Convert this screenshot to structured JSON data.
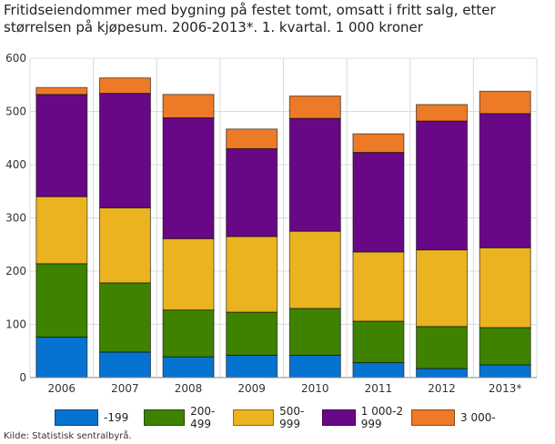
{
  "chart_data": {
    "type": "bar",
    "stacked": true,
    "title": "Fritidseiendommer med bygning på festet tomt, omsatt i fritt salg, etter størrelsen på kjøpesum. 2006-2013*. 1. kvartal. 1 000 kroner",
    "categories": [
      "2006",
      "2007",
      "2008",
      "2009",
      "2010",
      "2011",
      "2012",
      "2013*"
    ],
    "series": [
      {
        "name": "-199",
        "color": "#0773d0",
        "values": [
          76,
          48,
          39,
          42,
          42,
          28,
          17,
          24
        ]
      },
      {
        "name": "200-499",
        "color": "#3e8200",
        "values": [
          138,
          130,
          88,
          81,
          88,
          78,
          79,
          70
        ]
      },
      {
        "name": "500-999",
        "color": "#ebb320",
        "values": [
          126,
          141,
          134,
          142,
          145,
          130,
          144,
          150
        ]
      },
      {
        "name": "1 000-2 999",
        "color": "#680887",
        "values": [
          192,
          215,
          227,
          165,
          212,
          187,
          242,
          252
        ]
      },
      {
        "name": "3 000-",
        "color": "#ec7a27",
        "values": [
          13,
          29,
          44,
          37,
          42,
          35,
          31,
          42
        ]
      }
    ],
    "ylim": [
      0,
      600
    ],
    "yticks": [
      "0",
      "100",
      "200",
      "300",
      "400",
      "500",
      "600"
    ],
    "grid": true,
    "legend": "bottom",
    "source": "Kilde: Statistisk sentralbyrå."
  }
}
